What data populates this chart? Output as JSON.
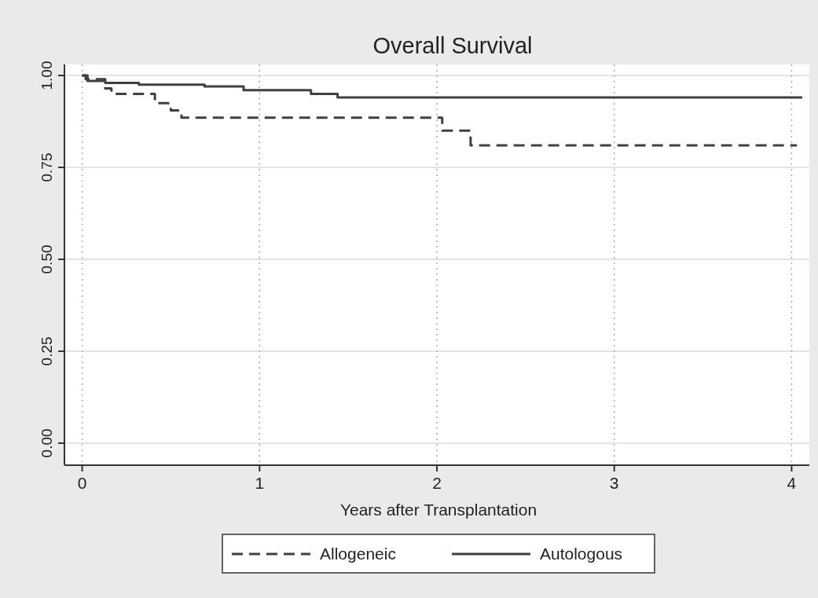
{
  "chart_data": {
    "type": "step",
    "title": "Overall Survival",
    "xlabel": "Years after Transplantation",
    "xlim": [
      -0.1,
      4.1
    ],
    "ylim": [
      -0.06,
      1.03
    ],
    "xticks": [
      0,
      1,
      2,
      3,
      4
    ],
    "yticks": [
      {
        "value": 0,
        "label": "0.00"
      },
      {
        "value": 0.25,
        "label": "0.25"
      },
      {
        "value": 0.5,
        "label": "0.50"
      },
      {
        "value": 0.75,
        "label": "0.75"
      },
      {
        "value": 1,
        "label": "1.00"
      }
    ],
    "grid": true,
    "legend": "bottom",
    "series": [
      {
        "name": "Allogeneic",
        "color": "#404040",
        "line_style": "dashed",
        "x": [
          0,
          0.02,
          0.13,
          0.165,
          0.41,
          0.5,
          0.56,
          2.03,
          2.19,
          4.03
        ],
        "values": [
          1,
          0.99,
          0.965,
          0.95,
          0.925,
          0.905,
          0.885,
          0.85,
          0.81,
          0.81
        ]
      },
      {
        "name": "Autologous",
        "color": "#404040",
        "line_style": "solid",
        "x": [
          0,
          0.03,
          0.13,
          0.32,
          0.69,
          0.91,
          1.29,
          1.44,
          4.06
        ],
        "values": [
          1,
          0.985,
          0.98,
          0.975,
          0.97,
          0.96,
          0.95,
          0.94,
          0.94
        ]
      }
    ]
  }
}
